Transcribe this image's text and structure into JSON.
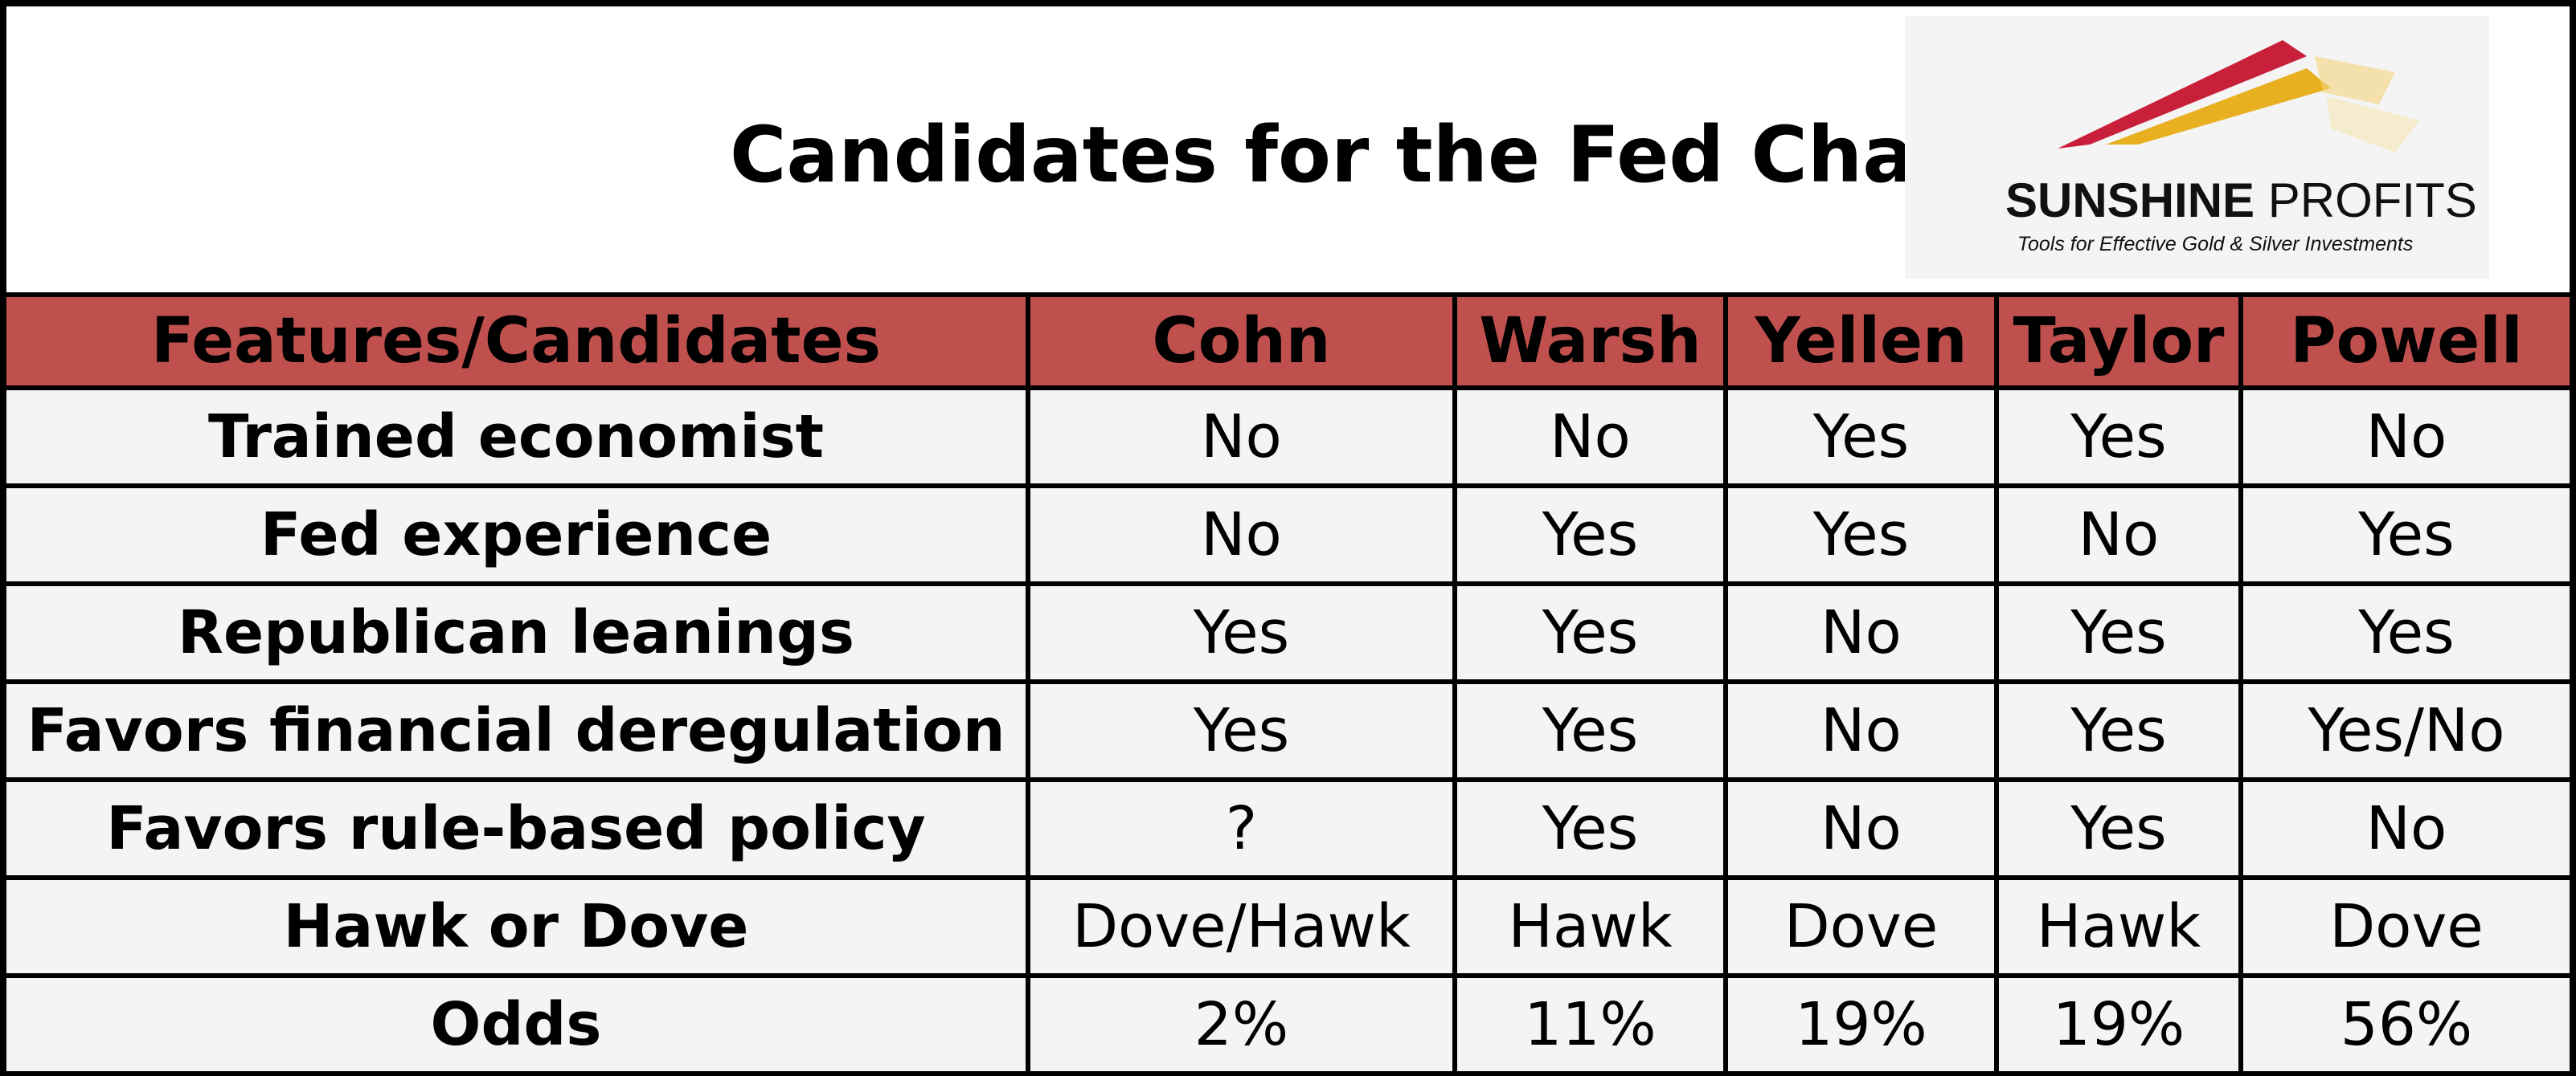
{
  "chart_data": {
    "type": "table",
    "title": "Candidates for the Fed Chair",
    "columns": [
      "Features/Candidates",
      "Cohn",
      "Warsh",
      "Yellen",
      "Taylor",
      "Powell"
    ],
    "rows": [
      [
        "Trained economist",
        "No",
        "No",
        "Yes",
        "Yes",
        "No"
      ],
      [
        "Fed experience",
        "No",
        "Yes",
        "Yes",
        "No",
        "Yes"
      ],
      [
        "Republican leanings",
        "Yes",
        "Yes",
        "No",
        "Yes",
        "Yes"
      ],
      [
        "Favors financial deregulation",
        "Yes",
        "Yes",
        "No",
        "Yes",
        "Yes/No"
      ],
      [
        "Favors rule-based policy",
        "?",
        "Yes",
        "No",
        "Yes",
        "No"
      ],
      [
        "Hawk or Dove",
        "Dove/Hawk",
        "Hawk",
        "Dove",
        "Hawk",
        "Dove"
      ],
      [
        "Odds",
        "2%",
        "11%",
        "19%",
        "19%",
        "56%"
      ]
    ],
    "header_color": "#c0504d",
    "cell_color": "#f4f4f4"
  },
  "logo": {
    "name_bold": "SUNSHINE",
    "name_light": " PROFITS",
    "tagline": "Tools for Effective Gold & Silver Investments",
    "colors": [
      "#c8203a",
      "#e8b020"
    ]
  }
}
